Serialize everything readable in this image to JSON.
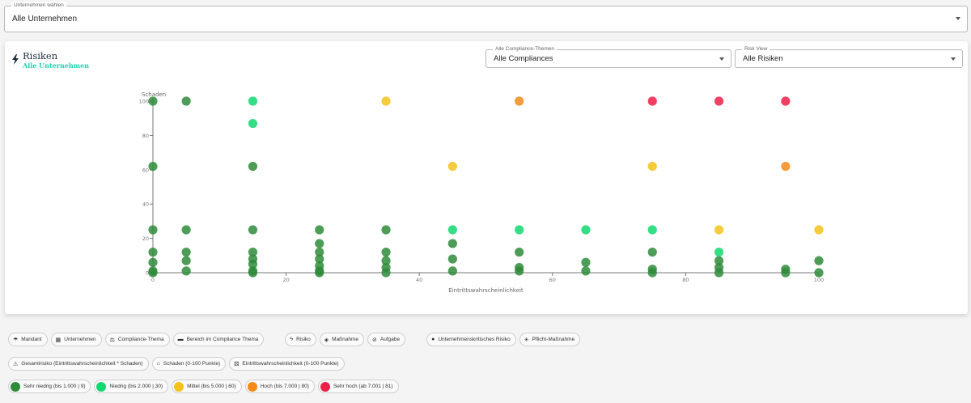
{
  "company_select": {
    "label": "Unternehmen wählen",
    "value": "Alle Unternehmen"
  },
  "card": {
    "title": "Risiken",
    "subtitle": "Alle Unternehmen",
    "compliance_select": {
      "label": "Alle Compliance-Themen",
      "value": "Alle Compliances"
    },
    "risk_view_select": {
      "label": "Risk View",
      "value": "Alle Risiken"
    }
  },
  "colors": {
    "sehr_niedrig": "#2e8b3a",
    "niedrig": "#12d870",
    "mittel": "#f6c21a",
    "hoch": "#f48a17",
    "sehr_hoch": "#ee1f48"
  },
  "chart_data": {
    "type": "scatter",
    "xlabel": "Eintrittswahrscheinlichkeit",
    "ylabel": "Schaden",
    "xlim": [
      0,
      100
    ],
    "ylim": [
      0,
      100
    ],
    "xticks": [
      0,
      20,
      40,
      60,
      80,
      100
    ],
    "yticks": [
      0,
      20,
      40,
      60,
      80,
      100
    ],
    "grid": false,
    "series": [
      {
        "name": "Sehr niedrig (bis 1.000 | 9)",
        "color": "#2e8b3a",
        "points": [
          [
            0,
            100
          ],
          [
            5,
            100
          ],
          [
            0,
            62
          ],
          [
            0,
            25
          ],
          [
            5,
            25
          ],
          [
            15,
            62
          ],
          [
            15,
            25
          ],
          [
            25,
            25
          ],
          [
            35,
            25
          ],
          [
            0,
            12
          ],
          [
            0,
            6
          ],
          [
            0,
            1
          ],
          [
            0,
            0
          ],
          [
            5,
            12
          ],
          [
            5,
            7
          ],
          [
            5,
            1
          ],
          [
            15,
            12
          ],
          [
            15,
            8
          ],
          [
            15,
            5
          ],
          [
            15,
            1
          ],
          [
            15,
            0
          ],
          [
            25,
            17
          ],
          [
            25,
            12
          ],
          [
            25,
            8
          ],
          [
            25,
            4
          ],
          [
            25,
            1
          ],
          [
            25,
            0
          ],
          [
            35,
            12
          ],
          [
            35,
            7
          ],
          [
            35,
            3
          ],
          [
            35,
            0
          ],
          [
            45,
            17
          ],
          [
            45,
            8
          ],
          [
            45,
            1
          ],
          [
            55,
            12
          ],
          [
            55,
            3
          ],
          [
            55,
            1
          ],
          [
            65,
            6
          ],
          [
            65,
            1
          ],
          [
            75,
            12
          ],
          [
            75,
            2
          ],
          [
            75,
            0
          ],
          [
            85,
            7
          ],
          [
            85,
            3
          ],
          [
            85,
            0
          ],
          [
            95,
            2
          ],
          [
            95,
            0
          ],
          [
            100,
            7
          ],
          [
            100,
            0
          ]
        ]
      },
      {
        "name": "Niedrig (bis 2.000 | 30)",
        "color": "#12d870",
        "points": [
          [
            15,
            100
          ],
          [
            15,
            87
          ],
          [
            45,
            25
          ],
          [
            55,
            25
          ],
          [
            65,
            25
          ],
          [
            75,
            25
          ],
          [
            85,
            12
          ]
        ]
      },
      {
        "name": "Mittel (bis 5.000 | 60)",
        "color": "#f6c21a",
        "points": [
          [
            35,
            100
          ],
          [
            45,
            62
          ],
          [
            75,
            62
          ],
          [
            85,
            25
          ],
          [
            100,
            25
          ]
        ]
      },
      {
        "name": "Hoch (bis 7.000 | 80)",
        "color": "#f48a17",
        "points": [
          [
            55,
            100
          ],
          [
            95,
            62
          ]
        ]
      },
      {
        "name": "Sehr hoch (ab 7.001 | 81)",
        "color": "#ee1f48",
        "points": [
          [
            75,
            100
          ],
          [
            85,
            100
          ],
          [
            95,
            100
          ]
        ]
      }
    ]
  },
  "legend": {
    "hierarchy": [
      {
        "icon": "☂",
        "icon_name": "umbrella-icon",
        "label": "Mandant"
      },
      {
        "icon": "▦",
        "icon_name": "building-icon",
        "label": "Unternehmen"
      },
      {
        "icon": "⚖",
        "icon_name": "scale-icon",
        "label": "Compliance-Thema"
      },
      {
        "icon": "▬",
        "icon_name": "folder-icon",
        "label": "Bereich im Compliance Thema"
      }
    ],
    "types": [
      {
        "icon": "ϟ",
        "icon_name": "bolt-icon",
        "label": "Risiko"
      },
      {
        "icon": "◈",
        "icon_name": "measure-icon",
        "label": "Maßnahme"
      },
      {
        "icon": "⊘",
        "icon_name": "task-icon",
        "label": "Aufgabe"
      }
    ],
    "flags": [
      {
        "icon": "●",
        "icon_name": "bomb-icon",
        "label": "Unternehmenskritisches Risiko"
      },
      {
        "icon": "✳",
        "icon_name": "asterisk-icon",
        "label": "Pflicht-Maßnahme"
      }
    ],
    "metrics": [
      {
        "icon": "⚠",
        "icon_name": "warning-icon",
        "label": "Gesamtrisiko (Eintrittswahrscheinlichkeit * Schaden)"
      },
      {
        "icon": "⌂",
        "icon_name": "damage-icon",
        "label": "Schaden (0-100 Punkte)"
      },
      {
        "icon": "⚄",
        "icon_name": "dice-icon",
        "label": "Eintrittswahrscheinlichkeit (0-100 Punkte)"
      }
    ],
    "levels": [
      {
        "color": "#2e8b3a",
        "label": "Sehr niedrig (bis 1.000 | 9)"
      },
      {
        "color": "#12d870",
        "label": "Niedrig (bis 2.000 | 30)"
      },
      {
        "color": "#f6c21a",
        "label": "Mittel (bis 5.000 | 60)"
      },
      {
        "color": "#f48a17",
        "label": "Hoch (bis 7.000 | 80)"
      },
      {
        "color": "#ee1f48",
        "label": "Sehr hoch (ab 7.001 | 81)"
      }
    ]
  }
}
